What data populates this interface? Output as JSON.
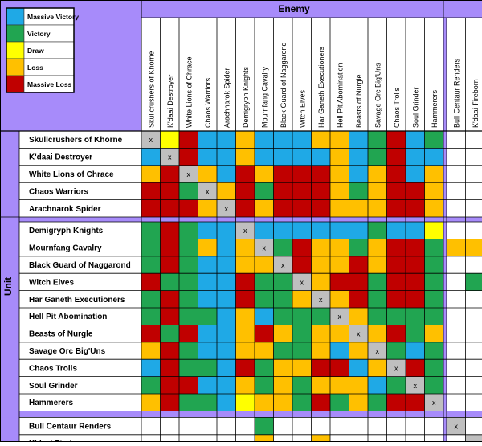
{
  "colors": {
    "massive_victory": "#1fa9e6",
    "victory": "#21a551",
    "draw": "#ffff00",
    "loss": "#ffc000",
    "massive_loss": "#c00000",
    "self": "#bfbfbf",
    "header_bg": "#a78bfa"
  },
  "chart_data": {
    "type": "heatmap",
    "column_group_title": "Enemy",
    "row_group_title": "Unit",
    "self_marker": "x",
    "legend": [
      {
        "key": "MV",
        "label": "Massive Victory",
        "color": "#1fa9e6"
      },
      {
        "key": "V",
        "label": "Victory",
        "color": "#21a551"
      },
      {
        "key": "D",
        "label": "Draw",
        "color": "#ffff00"
      },
      {
        "key": "L",
        "label": "Loss",
        "color": "#ffc000"
      },
      {
        "key": "ML",
        "label": "Massive Loss",
        "color": "#c00000"
      }
    ],
    "enemies": [
      "Skullcrushers of Khorne",
      "K'daai Destroyer",
      "White Lions of Chrace",
      "Chaos Warriors",
      "Arachnarok Spider",
      "Demigryph Knights",
      "Mournfang Cavalry",
      "Black Guard of Naggarond",
      "Witch Elves",
      "Har Ganeth Executioners",
      "Hell Pit Abomination",
      "Beasts of Nurgle",
      "Savage Orc Big'Uns",
      "Chaos Trolls",
      "Soul Grinder",
      "Hammerers",
      "Bull Centaur Renders",
      "K'daai Fireborn"
    ],
    "units": [
      "Skullcrushers of Khorne",
      "K'daai Destroyer",
      "White Lions of Chrace",
      "Chaos Warriors",
      "Arachnarok Spider",
      "Demigryph Knights",
      "Mournfang Cavalry",
      "Black Guard of Naggarond",
      "Witch Elves",
      "Har Ganeth Executioners",
      "Hell Pit Abomination",
      "Beasts of Nurgle",
      "Savage Orc Big'Uns",
      "Chaos Trolls",
      "Soul Grinder",
      "Hammerers",
      "Bull Centaur Renders",
      "K'daai Fireborn"
    ],
    "groups": {
      "units_block_1": 5,
      "units_block_2": 11,
      "units_block_3": 2,
      "enemies_main": 16,
      "enemies_extra": 2
    },
    "matrix": [
      [
        "X",
        "D",
        "ML",
        "MV",
        "MV",
        "L",
        "MV",
        "MV",
        "MV",
        "L",
        "L",
        "MV",
        "V",
        "ML",
        "MV",
        "V",
        "",
        ""
      ],
      [
        "MV",
        "X",
        "ML",
        "MV",
        "MV",
        "L",
        "MV",
        "MV",
        "MV",
        "MV",
        "L",
        "MV",
        "V",
        "ML",
        "MV",
        "MV",
        "",
        ""
      ],
      [
        "L",
        "ML",
        "X",
        "L",
        "MV",
        "ML",
        "L",
        "ML",
        "ML",
        "ML",
        "L",
        "MV",
        "L",
        "ML",
        "MV",
        "L",
        "",
        ""
      ],
      [
        "ML",
        "ML",
        "V",
        "X",
        "L",
        "ML",
        "V",
        "ML",
        "ML",
        "ML",
        "L",
        "V",
        "L",
        "ML",
        "ML",
        "L",
        "",
        ""
      ],
      [
        "ML",
        "ML",
        "ML",
        "L",
        "X",
        "ML",
        "L",
        "ML",
        "ML",
        "ML",
        "L",
        "L",
        "L",
        "ML",
        "ML",
        "L",
        "",
        ""
      ],
      [
        "V",
        "ML",
        "V",
        "MV",
        "MV",
        "X",
        "MV",
        "MV",
        "MV",
        "MV",
        "MV",
        "MV",
        "V",
        "MV",
        "MV",
        "D",
        "",
        ""
      ],
      [
        "V",
        "ML",
        "V",
        "L",
        "MV",
        "L",
        "X",
        "V",
        "ML",
        "L",
        "L",
        "V",
        "L",
        "ML",
        "ML",
        "V",
        "L",
        "L"
      ],
      [
        "V",
        "ML",
        "V",
        "MV",
        "MV",
        "L",
        "L",
        "X",
        "ML",
        "L",
        "L",
        "ML",
        "L",
        "ML",
        "ML",
        "V",
        "",
        ""
      ],
      [
        "ML",
        "V",
        "V",
        "MV",
        "MV",
        "ML",
        "V",
        "V",
        "X",
        "L",
        "ML",
        "ML",
        "V",
        "ML",
        "ML",
        "V",
        "",
        "V"
      ],
      [
        "V",
        "ML",
        "V",
        "MV",
        "MV",
        "ML",
        "V",
        "V",
        "L",
        "X",
        "L",
        "ML",
        "V",
        "ML",
        "ML",
        "V",
        "",
        ""
      ],
      [
        "V",
        "ML",
        "V",
        "V",
        "MV",
        "L",
        "MV",
        "V",
        "V",
        "V",
        "X",
        "L",
        "V",
        "V",
        "V",
        "V",
        "",
        ""
      ],
      [
        "ML",
        "V",
        "ML",
        "MV",
        "MV",
        "L",
        "ML",
        "L",
        "V",
        "L",
        "L",
        "X",
        "L",
        "ML",
        "V",
        "L",
        "",
        ""
      ],
      [
        "L",
        "ML",
        "V",
        "MV",
        "MV",
        "L",
        "L",
        "V",
        "V",
        "L",
        "MV",
        "L",
        "X",
        "V",
        "MV",
        "V",
        "",
        ""
      ],
      [
        "MV",
        "ML",
        "V",
        "V",
        "MV",
        "ML",
        "V",
        "L",
        "L",
        "ML",
        "ML",
        "MV",
        "L",
        "X",
        "ML",
        "V",
        "",
        ""
      ],
      [
        "V",
        "ML",
        "ML",
        "MV",
        "MV",
        "L",
        "V",
        "L",
        "V",
        "L",
        "L",
        "L",
        "MV",
        "V",
        "X",
        "V",
        "",
        ""
      ],
      [
        "L",
        "ML",
        "V",
        "V",
        "MV",
        "D",
        "L",
        "L",
        "V",
        "ML",
        "V",
        "L",
        "V",
        "ML",
        "ML",
        "X",
        "",
        ""
      ],
      [
        "",
        "",
        "",
        "",
        "",
        "",
        "V",
        "",
        "",
        "",
        "",
        "",
        "",
        "",
        "",
        "",
        "X",
        ""
      ],
      [
        "",
        "",
        "",
        "",
        "",
        "",
        "L",
        "",
        "",
        "L",
        "",
        "",
        "",
        "",
        "",
        "",
        "",
        "X"
      ]
    ]
  }
}
